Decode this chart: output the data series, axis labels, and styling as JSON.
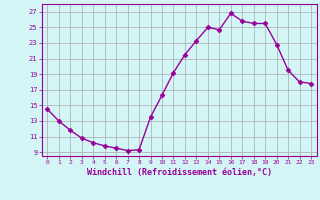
{
  "x": [
    0,
    1,
    2,
    3,
    4,
    5,
    6,
    7,
    8,
    9,
    10,
    11,
    12,
    13,
    14,
    15,
    16,
    17,
    18,
    19,
    20,
    21,
    22,
    23
  ],
  "y": [
    14.5,
    13.0,
    11.8,
    10.8,
    10.2,
    9.8,
    9.5,
    9.2,
    9.3,
    13.5,
    16.3,
    19.2,
    21.5,
    23.3,
    25.0,
    24.7,
    26.8,
    25.8,
    25.5,
    25.5,
    22.8,
    19.5,
    18.0,
    17.8
  ],
  "line_color": "#990099",
  "marker": "D",
  "markersize": 2.5,
  "linewidth": 1.0,
  "bg_color": "#d4f5f5",
  "grid_color": "#aaaaaa",
  "xlabel": "Windchill (Refroidissement éolien,°C)",
  "xlabel_fontsize": 6,
  "tick_color": "#990099",
  "yticks": [
    9,
    11,
    13,
    15,
    17,
    19,
    21,
    23,
    25,
    27
  ],
  "ylim": [
    8.5,
    28.0
  ],
  "xlim": [
    -0.5,
    23.5
  ],
  "xticks": [
    0,
    1,
    2,
    3,
    4,
    5,
    6,
    7,
    8,
    9,
    10,
    11,
    12,
    13,
    14,
    15,
    16,
    17,
    18,
    19,
    20,
    21,
    22,
    23
  ]
}
